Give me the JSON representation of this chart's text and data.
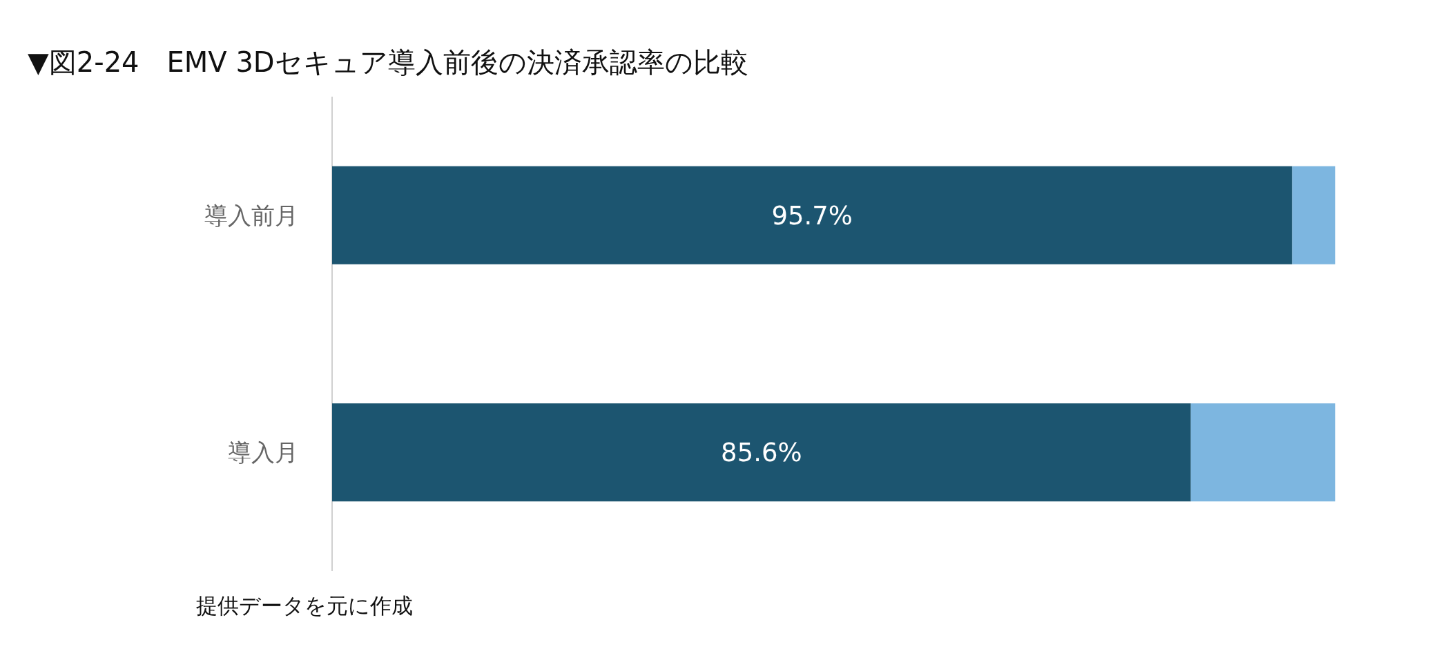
{
  "chart_data": {
    "type": "bar",
    "orientation": "horizontal",
    "stacked": true,
    "title": "▼図2-24　EMV 3Dセキュア導入前後の決済承認率の比較",
    "categories": [
      "導入前月",
      "導入月"
    ],
    "series": [
      {
        "color": "#1c5570",
        "values": [
          95.7,
          85.6
        ],
        "value_labels": [
          "95.7%",
          "85.6%"
        ]
      },
      {
        "color": "#7db6e0",
        "values": [
          4.3,
          14.4
        ]
      }
    ],
    "annotations": [
      "提供データを元に作成"
    ]
  }
}
